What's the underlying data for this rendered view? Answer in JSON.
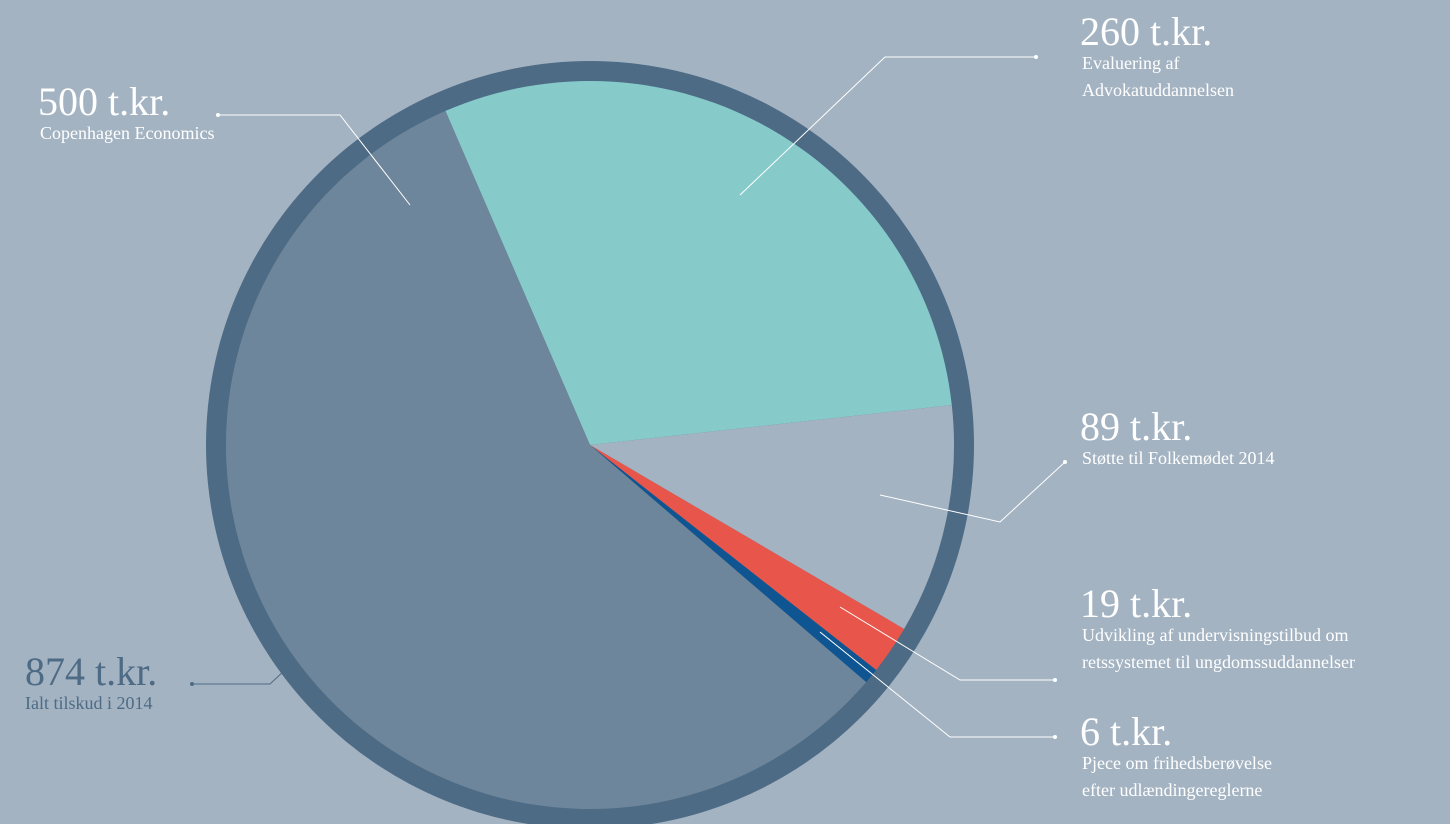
{
  "chart_data": {
    "type": "pie",
    "categories": [
      [
        "Copenhagen Economics"
      ],
      [
        "Evaluering af",
        "Advokatuddannelsen"
      ],
      [
        "Støtte til Folkemødet 2014"
      ],
      [
        "Udvikling af undervisningstilbud om",
        "retssystemet til ungdomssuddannelser"
      ],
      [
        "Pjece om frihedsberøvelse",
        "efter udlændingereglerne"
      ]
    ],
    "values": [
      500,
      260,
      89,
      19,
      6
    ],
    "value_labels": [
      "500 t.kr.",
      "260 t.kr.",
      "89 t.kr.",
      "19 t.kr.",
      "6 t.kr."
    ],
    "colors": [
      "#6e869b",
      "#86cbc9",
      "#a3b3c2",
      "#e8564b",
      "#0f5591"
    ],
    "total": {
      "value": 874,
      "label": "874 t.kr.",
      "description": "Ialt tilskud i 2014"
    }
  }
}
